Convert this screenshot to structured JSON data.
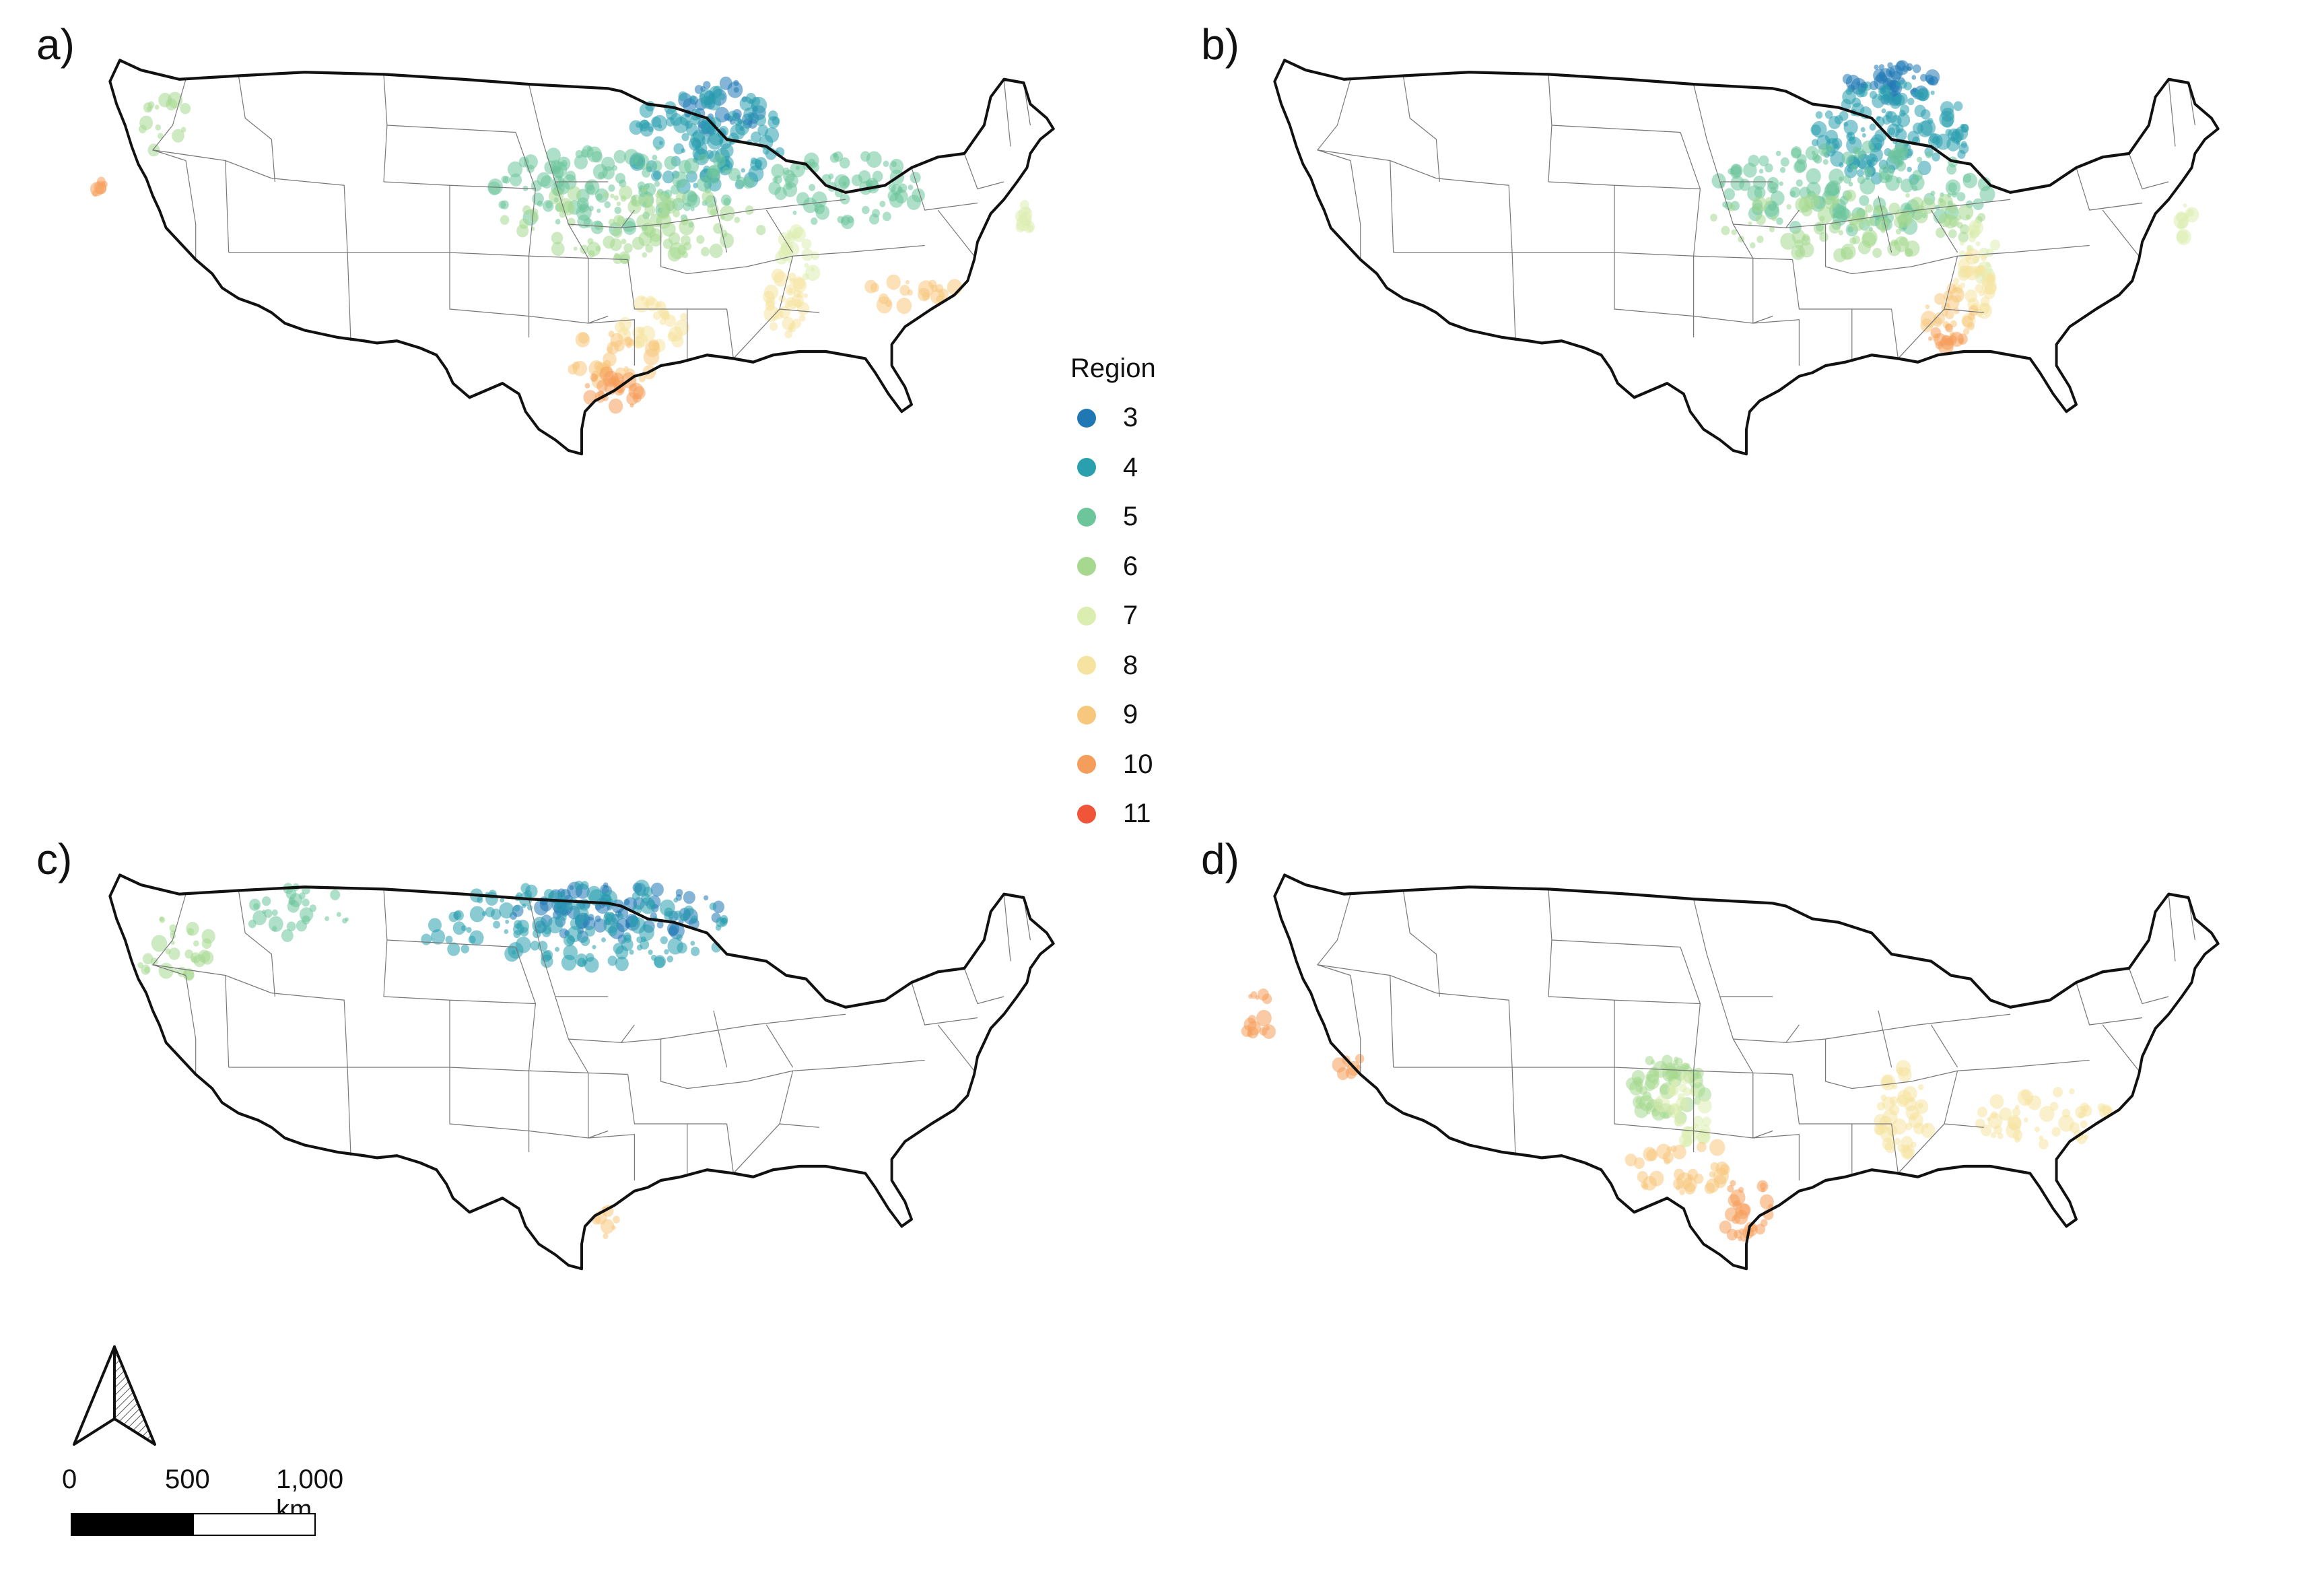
{
  "panels": [
    {
      "id": "a",
      "label": "a)",
      "regions": [
        3,
        4,
        5,
        6,
        7,
        8,
        9,
        10
      ]
    },
    {
      "id": "b",
      "label": "b)",
      "regions": [
        3,
        4,
        5,
        6,
        7,
        8,
        9,
        10
      ]
    },
    {
      "id": "c",
      "label": "c)",
      "regions": [
        3,
        4,
        5,
        6,
        9
      ]
    },
    {
      "id": "d",
      "label": "d)",
      "regions": [
        6,
        7,
        8,
        9,
        10
      ]
    }
  ],
  "legend": {
    "title": "Region",
    "items": [
      {
        "value": "3",
        "color": "#1f78b4"
      },
      {
        "value": "4",
        "color": "#2a9fae"
      },
      {
        "value": "5",
        "color": "#6cc59b"
      },
      {
        "value": "6",
        "color": "#a6d98f"
      },
      {
        "value": "7",
        "color": "#dcedb0"
      },
      {
        "value": "8",
        "color": "#f6e3a0"
      },
      {
        "value": "9",
        "color": "#f7c77e"
      },
      {
        "value": "10",
        "color": "#f59e5b"
      },
      {
        "value": "11",
        "color": "#f0553a"
      }
    ]
  },
  "scale": {
    "labels": [
      "0",
      "500",
      "1,000 km"
    ]
  },
  "north_arrow": {
    "icon": "north-arrow-icon"
  }
}
